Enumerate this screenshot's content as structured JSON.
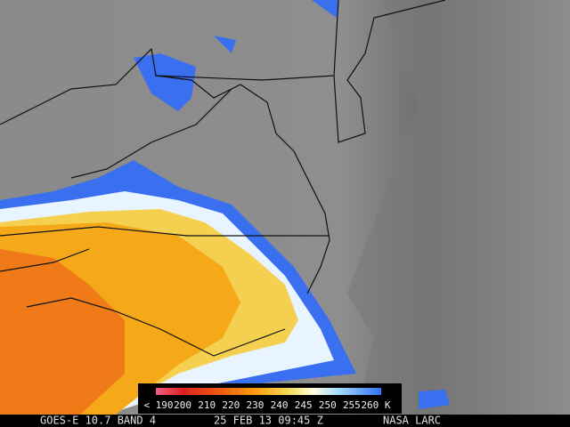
{
  "colorbar": {
    "labels": [
      "< 190",
      "200",
      "210",
      "220",
      "230",
      "240",
      "245",
      "250",
      "255",
      "260 K"
    ]
  },
  "footer": {
    "satellite": "GOES-E 10.7 BAND 4",
    "time": "25 FEB 13 09:45 Z",
    "source": "NASA LARC"
  }
}
